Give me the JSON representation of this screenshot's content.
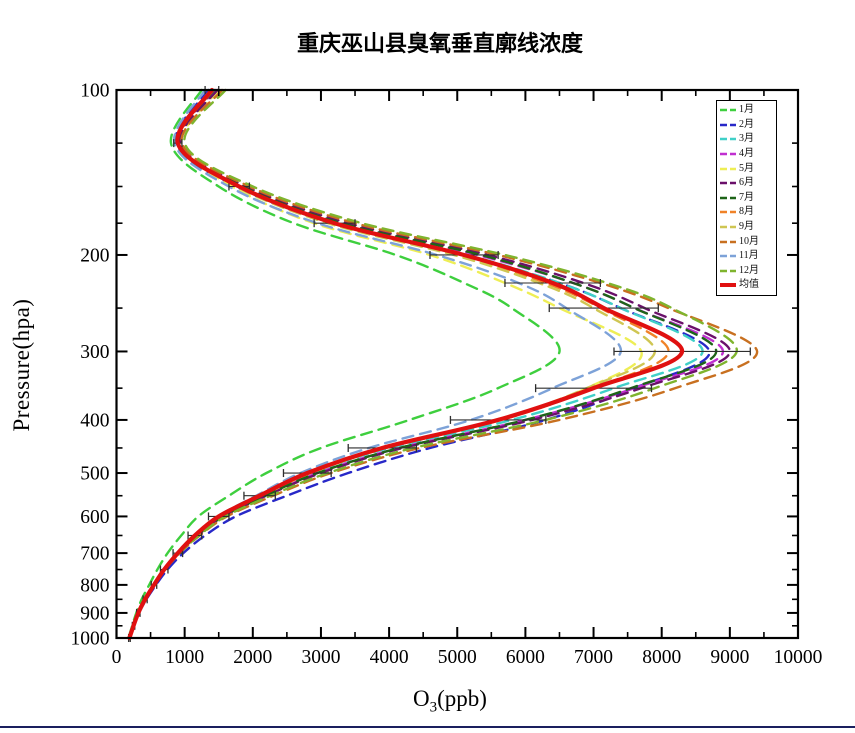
{
  "page": {
    "title": "重庆巫山县臭氧垂直廓线浓度"
  },
  "axes": {
    "x": {
      "label_element": "O",
      "label_subscript": "3",
      "label_rest": "(ppb)",
      "min": 0,
      "max": 10000,
      "major_step": 1000,
      "minor_step": 500,
      "tick_labels": [
        "0",
        "1000",
        "2000",
        "3000",
        "4000",
        "5000",
        "6000",
        "7000",
        "8000",
        "9000",
        "10000"
      ]
    },
    "y": {
      "label": "Pressure(hpa)",
      "scale": "log-inverted",
      "min": 100,
      "max": 1000,
      "tick_labels": [
        "100",
        "200",
        "300",
        "400",
        "500",
        "600",
        "700",
        "800",
        "900",
        "1000"
      ],
      "minor_ticks": [
        125,
        150,
        175,
        250,
        350,
        450,
        550,
        650,
        750,
        850,
        950
      ]
    }
  },
  "legend": {
    "entries": [
      {
        "label": "1月",
        "color": "#3ecf3e",
        "style": "dashed"
      },
      {
        "label": "2月",
        "color": "#2828c8",
        "style": "dashed"
      },
      {
        "label": "3月",
        "color": "#40d0c8",
        "style": "dashed"
      },
      {
        "label": "4月",
        "color": "#c030d0",
        "style": "dashed"
      },
      {
        "label": "5月",
        "color": "#eeee55",
        "style": "dashed"
      },
      {
        "label": "6月",
        "color": "#6a106a",
        "style": "dashed"
      },
      {
        "label": "7月",
        "color": "#1e6418",
        "style": "dashed"
      },
      {
        "label": "8月",
        "color": "#f08228",
        "style": "dashed"
      },
      {
        "label": "9月",
        "color": "#cfc653",
        "style": "dashed"
      },
      {
        "label": "10月",
        "color": "#c87020",
        "style": "dashed"
      },
      {
        "label": "11月",
        "color": "#7da2d8",
        "style": "dashed"
      },
      {
        "label": "12月",
        "color": "#7fb42e",
        "style": "dashed"
      },
      {
        "label": "均值",
        "color": "#e01010",
        "style": "solid-bold"
      }
    ]
  },
  "chart_data": {
    "type": "line",
    "title": "重庆巫山县臭氧垂直廓线浓度",
    "xlabel": "O3(ppb)",
    "ylabel": "Pressure(hpa)",
    "x_range": [
      0,
      10000
    ],
    "y_range": [
      100,
      1000
    ],
    "y_axis": "log scale, inverted (100 hPa top, 1000 hPa bottom)",
    "grid": false,
    "legend_position": "upper-right-inside",
    "pressure_levels_hpa": [
      100,
      125,
      150,
      175,
      200,
      225,
      250,
      300,
      350,
      400,
      450,
      500,
      550,
      600,
      650,
      700,
      750,
      800,
      850,
      900,
      950,
      1000
    ],
    "series": [
      {
        "name": "1月",
        "color": "#3ecf3e",
        "dashed": true,
        "values": [
          1250,
          800,
          1500,
          2600,
          4100,
          5100,
          5800,
          6500,
          5600,
          4300,
          3000,
          2200,
          1650,
          1200,
          950,
          750,
          600,
          480,
          370,
          290,
          230,
          175
        ]
      },
      {
        "name": "2月",
        "color": "#2828c8",
        "dashed": true,
        "values": [
          1350,
          870,
          1750,
          3150,
          5100,
          6500,
          7400,
          8700,
          7600,
          6300,
          4600,
          3400,
          2500,
          1750,
          1300,
          980,
          750,
          580,
          440,
          330,
          255,
          190
        ]
      },
      {
        "name": "3月",
        "color": "#40d0c8",
        "dashed": true,
        "values": [
          1400,
          900,
          1800,
          3200,
          5150,
          6500,
          7400,
          8600,
          7300,
          5800,
          4000,
          2850,
          2120,
          1520,
          1160,
          900,
          700,
          550,
          420,
          320,
          250,
          190
        ]
      },
      {
        "name": "4月",
        "color": "#c030d0",
        "dashed": true,
        "values": [
          1450,
          920,
          1850,
          3300,
          5300,
          6700,
          7600,
          8900,
          7600,
          6000,
          4150,
          2950,
          2180,
          1560,
          1180,
          910,
          705,
          552,
          422,
          320,
          250,
          190
        ]
      },
      {
        "name": "5月",
        "color": "#eeee55",
        "dashed": true,
        "values": [
          1500,
          950,
          1700,
          2900,
          4600,
          5700,
          6500,
          7700,
          6900,
          5600,
          3950,
          2850,
          2150,
          1550,
          1180,
          915,
          710,
          555,
          425,
          322,
          250,
          190
        ]
      },
      {
        "name": "6月",
        "color": "#6a106a",
        "dashed": true,
        "values": [
          1480,
          940,
          1900,
          3400,
          5450,
          6850,
          7750,
          9000,
          7700,
          6100,
          4200,
          3000,
          2200,
          1570,
          1190,
          915,
          708,
          553,
          423,
          321,
          250,
          190
        ]
      },
      {
        "name": "7月",
        "color": "#1e6418",
        "dashed": true,
        "values": [
          1430,
          915,
          1850,
          3300,
          5350,
          6700,
          7600,
          8800,
          7550,
          6000,
          4150,
          2950,
          2180,
          1560,
          1180,
          910,
          705,
          551,
          421,
          320,
          249,
          189
        ]
      },
      {
        "name": "8月",
        "color": "#f08228",
        "dashed": true,
        "values": [
          1380,
          890,
          1780,
          3150,
          5050,
          6300,
          7100,
          8100,
          7000,
          5650,
          3950,
          2840,
          2120,
          1520,
          1160,
          900,
          700,
          548,
          419,
          318,
          248,
          188
        ]
      },
      {
        "name": "9月",
        "color": "#cfc653",
        "dashed": true,
        "values": [
          1420,
          905,
          1760,
          3100,
          4950,
          6200,
          7000,
          7900,
          6900,
          5600,
          3920,
          2830,
          2110,
          1515,
          1155,
          898,
          698,
          547,
          418,
          317,
          247,
          187
        ]
      },
      {
        "name": "10月",
        "color": "#c87020",
        "dashed": true,
        "values": [
          1550,
          960,
          1950,
          3500,
          5600,
          7100,
          8100,
          9400,
          8200,
          6500,
          4450,
          3150,
          2300,
          1620,
          1220,
          930,
          715,
          557,
          425,
          322,
          251,
          190
        ]
      },
      {
        "name": "11月",
        "color": "#7da2d8",
        "dashed": true,
        "values": [
          1300,
          850,
          1650,
          2950,
          4700,
          5900,
          6600,
          7400,
          6400,
          5200,
          3700,
          2700,
          2050,
          1480,
          1140,
          890,
          695,
          545,
          417,
          316,
          246,
          186
        ]
      },
      {
        "name": "12月",
        "color": "#7fb42e",
        "dashed": true,
        "values": [
          1600,
          1000,
          2000,
          3600,
          5700,
          7200,
          8150,
          9100,
          7900,
          6300,
          4350,
          3100,
          2260,
          1600,
          1210,
          925,
          712,
          555,
          424,
          321,
          250,
          189
        ]
      }
    ],
    "mean_series": {
      "name": "均值",
      "color": "#e01010",
      "dashed": false,
      "line_width": 4.2,
      "values": [
        1400,
        900,
        1800,
        3200,
        5100,
        6400,
        7150,
        8300,
        7000,
        5600,
        3900,
        2800,
        2100,
        1500,
        1150,
        900,
        700,
        550,
        420,
        320,
        250,
        190
      ],
      "error_ppb": [
        100,
        60,
        150,
        300,
        500,
        700,
        800,
        1000,
        850,
        700,
        500,
        350,
        230,
        150,
        100,
        70,
        55,
        40,
        30,
        25,
        18,
        12
      ]
    }
  }
}
